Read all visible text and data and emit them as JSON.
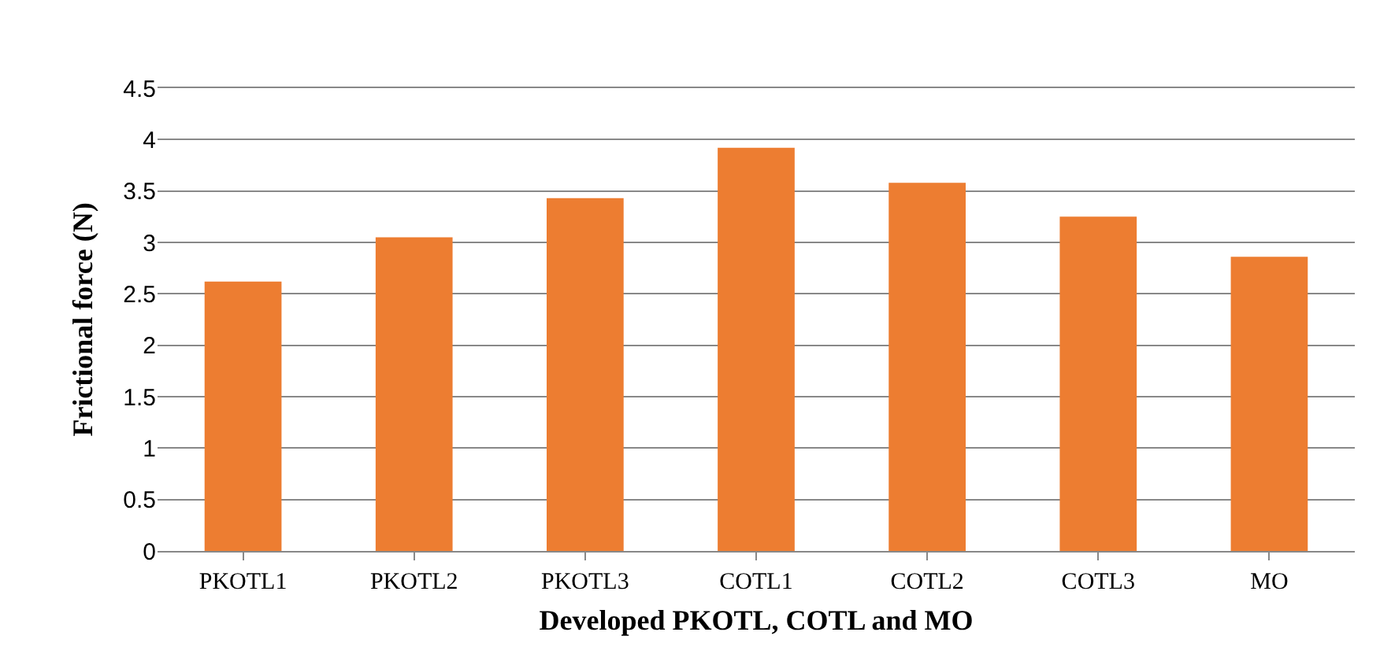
{
  "chart_data": {
    "type": "bar",
    "xlabel": "Developed PKOTL, COTL and MO",
    "ylabel": "Frictional force (N)",
    "categories": [
      "PKOTL1",
      "PKOTL2",
      "PKOTL3",
      "COTL1",
      "COTL2",
      "COTL3",
      "MO"
    ],
    "values": [
      2.62,
      3.05,
      3.43,
      3.92,
      3.58,
      3.25,
      2.86
    ],
    "color": "#ed7d31",
    "ylim": [
      0,
      4.5
    ],
    "yticks": [
      0,
      0.5,
      1,
      1.5,
      2,
      2.5,
      3,
      3.5,
      4,
      4.5
    ],
    "grid": "y"
  }
}
